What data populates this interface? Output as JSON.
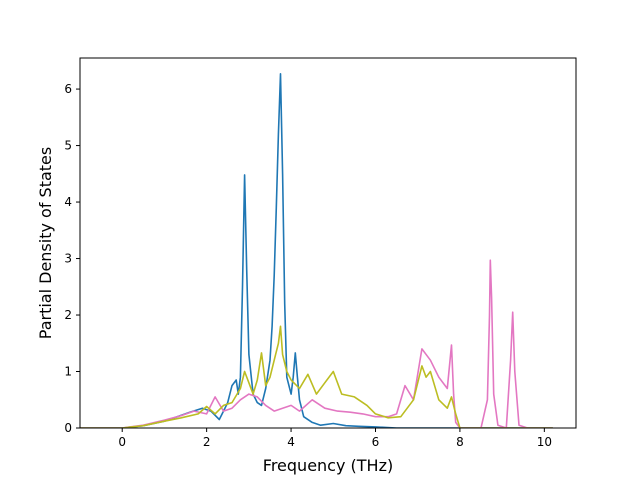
{
  "chart_data": {
    "type": "line",
    "title": "",
    "xlabel": "Frequency (THz)",
    "ylabel": "Partial Density of States",
    "xlim": [
      -1.0,
      10.75
    ],
    "ylim": [
      0,
      6.55
    ],
    "xticks": [
      0,
      2,
      4,
      6,
      8,
      10
    ],
    "yticks": [
      0,
      1,
      2,
      3,
      4,
      5,
      6
    ],
    "grid": false,
    "legend": "none",
    "series": [
      {
        "color": "#1f77b4",
        "x": [
          -1.0,
          0.0,
          0.5,
          1.0,
          1.3,
          1.6,
          1.9,
          2.1,
          2.3,
          2.4,
          2.5,
          2.6,
          2.7,
          2.75,
          2.8,
          2.85,
          2.9,
          2.95,
          3.0,
          3.1,
          3.2,
          3.3,
          3.4,
          3.5,
          3.55,
          3.6,
          3.65,
          3.7,
          3.75,
          3.8,
          3.85,
          3.9,
          4.0,
          4.05,
          4.1,
          4.15,
          4.2,
          4.3,
          4.5,
          4.7,
          5.0,
          5.3,
          5.6,
          6.0,
          6.5,
          7.0,
          10.2
        ],
        "y": [
          0.0,
          0.0,
          0.04,
          0.12,
          0.2,
          0.28,
          0.35,
          0.3,
          0.15,
          0.3,
          0.45,
          0.75,
          0.85,
          0.6,
          0.9,
          2.5,
          4.48,
          2.8,
          1.3,
          0.6,
          0.45,
          0.4,
          0.7,
          1.2,
          1.8,
          2.7,
          3.9,
          5.2,
          6.27,
          4.5,
          2.2,
          0.9,
          0.6,
          0.9,
          1.33,
          0.9,
          0.5,
          0.2,
          0.1,
          0.05,
          0.08,
          0.04,
          0.03,
          0.02,
          0.0,
          0.0,
          0.0
        ]
      },
      {
        "color": "#e377c2",
        "x": [
          -1.0,
          0.0,
          0.5,
          1.0,
          1.4,
          1.7,
          2.0,
          2.2,
          2.4,
          2.6,
          2.8,
          3.0,
          3.2,
          3.4,
          3.6,
          3.8,
          4.0,
          4.2,
          4.5,
          4.8,
          5.1,
          5.4,
          5.7,
          6.0,
          6.3,
          6.5,
          6.7,
          6.9,
          7.1,
          7.3,
          7.5,
          7.7,
          7.8,
          7.85,
          7.9,
          8.0,
          8.5,
          8.65,
          8.7,
          8.72,
          8.75,
          8.8,
          8.9,
          9.1,
          9.2,
          9.25,
          9.3,
          9.4,
          9.6,
          10.2
        ],
        "y": [
          0.0,
          0.0,
          0.05,
          0.14,
          0.22,
          0.3,
          0.25,
          0.55,
          0.3,
          0.35,
          0.5,
          0.6,
          0.55,
          0.4,
          0.3,
          0.35,
          0.4,
          0.3,
          0.5,
          0.35,
          0.3,
          0.28,
          0.25,
          0.2,
          0.2,
          0.25,
          0.75,
          0.5,
          1.4,
          1.2,
          0.9,
          0.7,
          1.47,
          0.6,
          0.1,
          0.0,
          0.0,
          0.5,
          2.0,
          2.97,
          2.3,
          0.6,
          0.05,
          0.0,
          1.2,
          2.05,
          1.0,
          0.05,
          0.0,
          0.0
        ]
      },
      {
        "color": "#bcbd22",
        "x": [
          -1.0,
          0.0,
          0.5,
          1.0,
          1.4,
          1.8,
          2.0,
          2.2,
          2.4,
          2.6,
          2.8,
          2.9,
          3.0,
          3.1,
          3.2,
          3.3,
          3.4,
          3.5,
          3.6,
          3.7,
          3.75,
          3.8,
          3.9,
          4.0,
          4.2,
          4.4,
          4.6,
          4.8,
          5.0,
          5.2,
          5.5,
          5.8,
          6.0,
          6.3,
          6.6,
          6.9,
          7.1,
          7.2,
          7.3,
          7.5,
          7.7,
          7.8,
          7.9,
          8.0,
          8.5,
          10.2
        ],
        "y": [
          0.0,
          0.0,
          0.04,
          0.12,
          0.18,
          0.25,
          0.38,
          0.25,
          0.4,
          0.45,
          0.7,
          1.0,
          0.8,
          0.6,
          0.85,
          1.33,
          0.75,
          0.9,
          1.2,
          1.5,
          1.8,
          1.3,
          1.0,
          0.85,
          0.7,
          0.95,
          0.6,
          0.8,
          1.0,
          0.6,
          0.55,
          0.4,
          0.25,
          0.18,
          0.2,
          0.5,
          1.1,
          0.9,
          1.0,
          0.5,
          0.35,
          0.55,
          0.25,
          0.0,
          0.0,
          0.0
        ]
      }
    ]
  }
}
